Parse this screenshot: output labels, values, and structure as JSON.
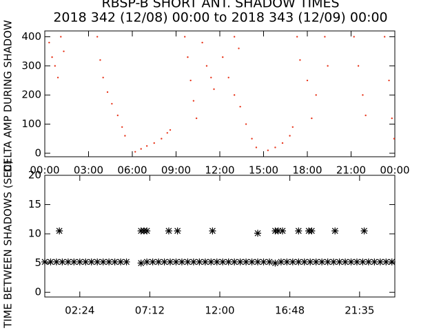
{
  "chart_data": [
    {
      "type": "scatter",
      "title": "RBSP-B SHORT ANT. SHADOW TIMES",
      "subtitle": "2018 342 (12/08) 00:00 to 2018 343 (12/09) 00:00",
      "ylabel": "DELTA AMP DURING SHADOW",
      "color": "#e8361c",
      "x": [
        0.3,
        0.5,
        0.7,
        0.9,
        1.1,
        1.3,
        3.6,
        3.8,
        4.0,
        4.3,
        4.6,
        5.0,
        5.3,
        5.5,
        6.2,
        6.6,
        7.0,
        7.5,
        8.0,
        8.4,
        8.6,
        9.6,
        9.8,
        10.0,
        10.2,
        10.4,
        10.8,
        11.1,
        11.4,
        11.6,
        12.2,
        12.6,
        13.0,
        13.4,
        13.8,
        14.2,
        14.5,
        13.0,
        13.3,
        15.3,
        15.8,
        16.3,
        16.8,
        17.0,
        17.3,
        17.5,
        18.0,
        18.3,
        18.6,
        19.2,
        19.4,
        21.2,
        21.5,
        21.8,
        22.0,
        23.3,
        23.6,
        23.8,
        23.95
      ],
      "values": [
        380,
        330,
        300,
        260,
        400,
        350,
        400,
        320,
        260,
        210,
        170,
        130,
        90,
        60,
        5,
        15,
        25,
        35,
        50,
        70,
        80,
        400,
        330,
        250,
        180,
        120,
        380,
        300,
        260,
        220,
        330,
        260,
        200,
        160,
        100,
        50,
        20,
        400,
        360,
        10,
        20,
        35,
        60,
        90,
        400,
        320,
        250,
        120,
        200,
        400,
        300,
        400,
        300,
        200,
        130,
        400,
        250,
        120,
        50
      ],
      "xlim": [
        0,
        24
      ],
      "ylim": [
        -12,
        420
      ],
      "xticks": [
        {
          "value": 0,
          "label": "00:00"
        },
        {
          "value": 3,
          "label": "03:00"
        },
        {
          "value": 6,
          "label": "06:00"
        },
        {
          "value": 9,
          "label": "09:00"
        },
        {
          "value": 12,
          "label": "12:00"
        },
        {
          "value": 15,
          "label": "15:00"
        },
        {
          "value": 18,
          "label": "18:00"
        },
        {
          "value": 21,
          "label": "21:00"
        },
        {
          "value": 24,
          "label": "00:00"
        }
      ],
      "yticks": [
        0,
        100,
        200,
        300,
        400
      ]
    },
    {
      "type": "asterisk",
      "ylabel": "TIME BETWEEN SHADOWS (SEC)",
      "color": "#000000",
      "x": [
        1.0,
        6.6,
        6.8,
        7.0,
        8.5,
        9.1,
        11.5,
        14.6,
        15.8,
        16.0,
        16.3,
        17.4,
        18.1,
        18.3,
        19.9,
        21.9,
        0,
        0.4,
        0.8,
        1.2,
        1.6,
        2,
        2.4,
        2.8,
        3.2,
        3.6,
        4,
        4.4,
        4.8,
        5.2,
        5.6,
        6.6,
        7,
        7.4,
        7.8,
        8.2,
        8.6,
        9,
        9.4,
        9.8,
        10.2,
        10.6,
        11,
        11.4,
        11.8,
        12.2,
        12.6,
        13,
        13.4,
        13.8,
        14.2,
        14.6,
        15,
        15.4,
        15.8,
        16.2,
        16.6,
        17,
        17.4,
        17.8,
        18.2,
        18.6,
        19,
        19.4,
        19.8,
        20.2,
        20.6,
        21,
        21.4,
        21.8,
        22.2,
        22.6,
        23,
        23.4,
        23.8
      ],
      "values": [
        10.5,
        10.5,
        10.5,
        10.5,
        10.5,
        10.5,
        10.5,
        10.1,
        10.5,
        10.5,
        10.5,
        10.5,
        10.5,
        10.5,
        10.5,
        10.5,
        5.2,
        5.2,
        5.2,
        5.2,
        5.2,
        5.2,
        5.2,
        5.2,
        5.2,
        5.2,
        5.2,
        5.2,
        5.2,
        5.2,
        5.2,
        5.0,
        5.2,
        5.2,
        5.2,
        5.2,
        5.2,
        5.2,
        5.2,
        5.2,
        5.2,
        5.2,
        5.2,
        5.2,
        5.2,
        5.2,
        5.2,
        5.2,
        5.2,
        5.2,
        5.2,
        5.2,
        5.2,
        5.2,
        5.0,
        5.2,
        5.2,
        5.2,
        5.2,
        5.2,
        5.2,
        5.2,
        5.2,
        5.2,
        5.2,
        5.2,
        5.2,
        5.2,
        5.2,
        5.2,
        5.2,
        5.2,
        5.2,
        5.2,
        5.2
      ],
      "xlim": [
        0,
        24
      ],
      "ylim": [
        -0.8,
        20
      ],
      "xticks": [
        {
          "value": 2.4,
          "label": "02:24"
        },
        {
          "value": 7.2,
          "label": "07:12"
        },
        {
          "value": 12,
          "label": "12:00"
        },
        {
          "value": 16.8,
          "label": "16:48"
        },
        {
          "value": 21.583,
          "label": "21:35"
        }
      ],
      "yticks": [
        0,
        5,
        10,
        15,
        20
      ]
    }
  ]
}
